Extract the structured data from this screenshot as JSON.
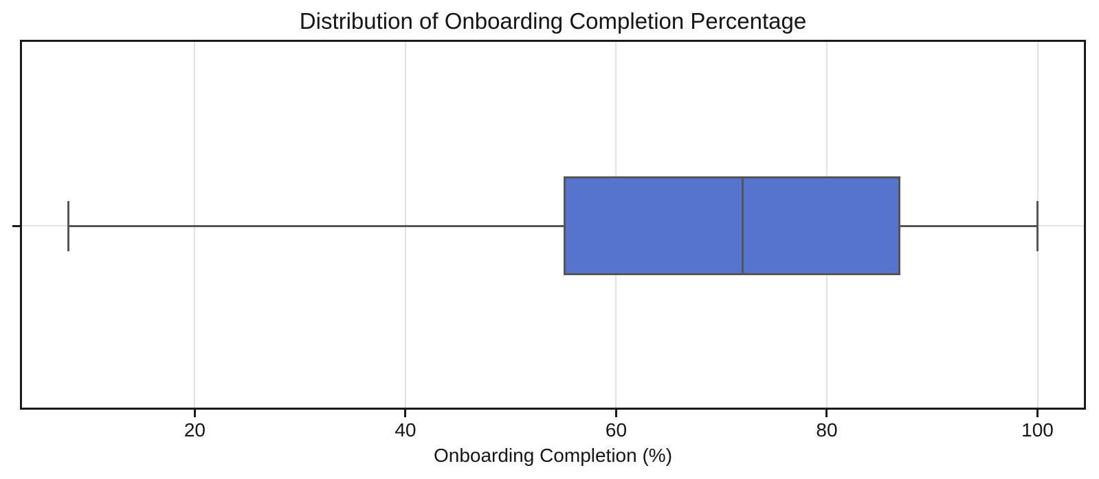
{
  "chart_data": {
    "type": "box",
    "orientation": "horizontal",
    "title": "Distribution of Onboarding Completion Percentage",
    "xlabel": "Onboarding Completion (%)",
    "ylabel": "",
    "series": [
      {
        "name": "Onboarding Completion",
        "min": 8,
        "q1": 55,
        "median": 72,
        "q3": 87,
        "max": 100,
        "outliers": []
      }
    ],
    "xlim": [
      3.4,
      104.6
    ],
    "xticks": [
      20,
      40,
      60,
      80,
      100
    ],
    "grid": true,
    "legend": false,
    "colors": {
      "box_fill": "#5674CD",
      "box_edge": "#555555",
      "whisker": "#555555",
      "median": "#555555",
      "grid": "#E2E2E2",
      "spine": "#1A1A1A",
      "text": "#151515",
      "background": "#FFFFFF"
    }
  }
}
